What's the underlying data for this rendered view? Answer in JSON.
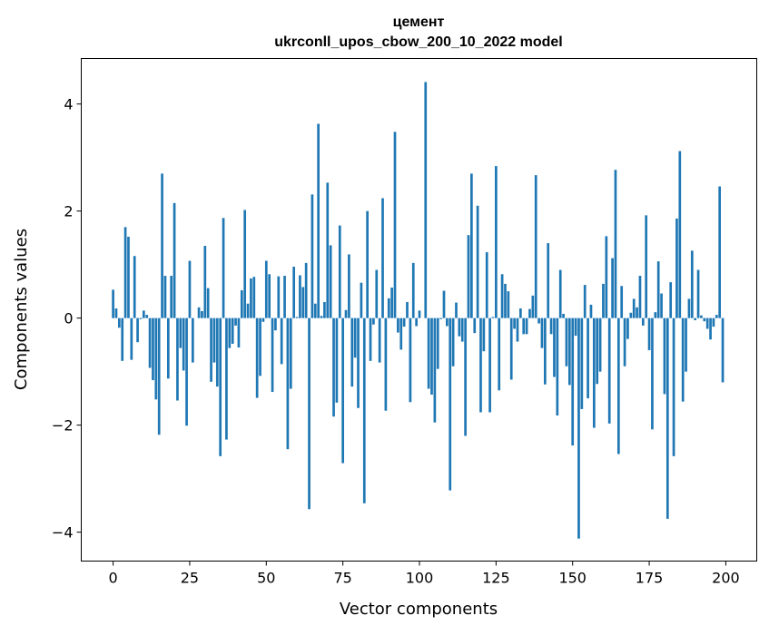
{
  "chart_data": {
    "type": "bar",
    "title": "цемент",
    "subtitle": "ukrconll_upos_cbow_200_10_2022 model",
    "xlabel": "Vector components",
    "ylabel": "Components values",
    "xlim": [
      -10.4,
      210.1
    ],
    "ylim": [
      -4.54,
      4.85
    ],
    "xticks": [
      0,
      25,
      50,
      75,
      100,
      125,
      150,
      175,
      200
    ],
    "xtick_labels": [
      "0",
      "25",
      "50",
      "75",
      "100",
      "125",
      "150",
      "175",
      "200"
    ],
    "yticks": [
      -4,
      -2,
      0,
      2,
      4
    ],
    "ytick_labels": [
      "−4",
      "−2",
      "0",
      "2",
      "4"
    ],
    "grid": false,
    "bar_color": "#1f77b4",
    "values": [
      0.53,
      0.18,
      -0.18,
      -0.8,
      1.7,
      1.52,
      -0.78,
      1.16,
      -0.45,
      -0.02,
      0.14,
      0.06,
      -0.93,
      -1.16,
      -1.52,
      -2.18,
      2.7,
      0.79,
      -1.13,
      0.79,
      2.15,
      -1.54,
      -0.56,
      -0.98,
      -2.01,
      1.07,
      -0.83,
      0,
      0.2,
      0.13,
      1.35,
      0.56,
      -1.19,
      -0.83,
      -1.28,
      -2.58,
      1.87,
      -2.27,
      -0.56,
      -0.48,
      -0.14,
      -0.55,
      0.52,
      2.02,
      0.27,
      0.74,
      0.77,
      -1.49,
      -1.08,
      -0.07,
      1.07,
      0.82,
      -1.38,
      -0.23,
      0.78,
      -0.86,
      0.79,
      -2.45,
      -1.32,
      0.96,
      0.02,
      0.8,
      0.58,
      1.03,
      -3.57,
      2.31,
      0.27,
      3.63,
      0.04,
      0.3,
      2.53,
      1.36,
      -1.84,
      -1.58,
      1.73,
      -2.71,
      0.15,
      1.19,
      -1.28,
      -0.74,
      -1.68,
      0.66,
      -3.46,
      2.0,
      -0.8,
      -0.12,
      0.9,
      -0.83,
      2.24,
      -1.73,
      0.37,
      0.57,
      3.48,
      -0.27,
      -0.59,
      -0.16,
      0.3,
      -1.57,
      1.03,
      -0.15,
      0.14,
      0,
      4.41,
      -1.32,
      -1.43,
      -1.95,
      -0.95,
      -0.02,
      0.51,
      -0.15,
      -3.22,
      -0.9,
      0.29,
      -0.34,
      -0.44,
      -2.2,
      1.55,
      2.7,
      -0.28,
      2.1,
      -1.76,
      -0.62,
      1.23,
      -1.76,
      0.02,
      2.84,
      -1.35,
      0.82,
      0.64,
      0.5,
      -1.15,
      -0.2,
      -0.44,
      0.18,
      -0.3,
      -0.3,
      0.17,
      0.42,
      2.67,
      -0.1,
      -0.56,
      -1.24,
      1.4,
      -0.3,
      -1.1,
      -1.82,
      0.9,
      0.08,
      -0.9,
      -1.25,
      -2.38,
      -0.33,
      -4.12,
      -1.7,
      0.62,
      -1.5,
      0.25,
      -2.05,
      -1.23,
      -1.0,
      0.64,
      1.53,
      -1.97,
      1.12,
      2.77,
      -2.54,
      0.6,
      -0.9,
      -0.39,
      0.1,
      0.36,
      0.2,
      0.79,
      -0.14,
      1.92,
      -0.6,
      -2.08,
      0.11,
      1.06,
      0.46,
      -1.42,
      -3.75,
      0.67,
      -2.58,
      1.86,
      3.12,
      -1.56,
      -1.0,
      0.36,
      1.26,
      -0.04,
      0.9,
      0.05,
      -0.06,
      -0.2,
      -0.4,
      -0.16,
      0.06,
      2.46,
      -1.2
    ]
  }
}
